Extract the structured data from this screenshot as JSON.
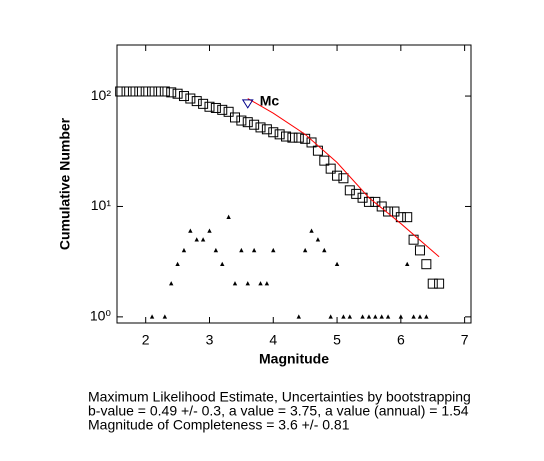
{
  "chart_data": {
    "type": "scatter",
    "xlabel": "Magnitude",
    "ylabel": "Cumulative Number",
    "xlim": [
      1.55,
      7.1
    ],
    "ylim": [
      0.88,
      290
    ],
    "log_y": true,
    "xticks": [
      2,
      3,
      4,
      5,
      6,
      7
    ],
    "yticks": [
      {
        "value": 1,
        "label": "10⁰"
      },
      {
        "value": 10,
        "label": "10¹"
      },
      {
        "value": 100,
        "label": "10²"
      }
    ],
    "series": [
      {
        "marker": "square",
        "color": "#000000",
        "x": [
          1.6,
          1.7,
          1.8,
          1.9,
          2.0,
          2.1,
          2.2,
          2.3,
          2.4,
          2.5,
          2.6,
          2.7,
          2.8,
          2.9,
          3.0,
          3.1,
          3.2,
          3.3,
          3.4,
          3.5,
          3.6,
          3.7,
          3.8,
          3.9,
          4.0,
          4.1,
          4.2,
          4.3,
          4.4,
          4.5,
          4.6,
          4.7,
          4.8,
          4.9,
          5.0,
          5.1,
          5.2,
          5.3,
          5.4,
          5.5,
          5.6,
          5.7,
          5.8,
          5.9,
          6.0,
          6.1,
          6.2,
          6.3,
          6.4,
          6.5,
          6.6
        ],
        "values": [
          110,
          110,
          110,
          110,
          110,
          110,
          110,
          110,
          108,
          105,
          100,
          95,
          90,
          85,
          80,
          78,
          75,
          72,
          64,
          60,
          58,
          55,
          52,
          50,
          47,
          45,
          43,
          42,
          42,
          41,
          38,
          32,
          26,
          22,
          19,
          18,
          14,
          13,
          12,
          11,
          11,
          10,
          9,
          9,
          8,
          8,
          5,
          4,
          3,
          2,
          2
        ]
      },
      {
        "marker": "triangle",
        "color": "#000000",
        "x": [
          2.1,
          2.3,
          2.4,
          2.5,
          2.6,
          2.7,
          2.8,
          2.9,
          3.0,
          3.1,
          3.2,
          3.3,
          3.4,
          3.5,
          3.6,
          3.7,
          3.8,
          3.9,
          4.0,
          4.4,
          4.5,
          4.6,
          4.7,
          4.8,
          4.9,
          5.0,
          5.1,
          5.2,
          5.4,
          5.5,
          5.6,
          5.7,
          5.8,
          6.0,
          6.1,
          6.2,
          6.3,
          6.4
        ],
        "values": [
          1,
          1,
          2,
          3,
          4,
          6,
          5,
          5,
          6,
          4,
          3,
          8,
          2,
          4,
          2,
          4,
          2,
          2,
          4,
          1,
          4,
          6,
          5,
          4,
          1,
          3,
          1,
          1,
          1,
          1,
          1,
          1,
          1,
          1,
          3,
          1,
          1,
          1
        ]
      },
      {
        "marker": "line",
        "color": "#ff0000",
        "x": [
          3.6,
          4.0,
          4.5,
          5.0,
          5.5,
          6.0,
          6.6
        ],
        "values": [
          95,
          70,
          45,
          25,
          12,
          7,
          3.5
        ]
      }
    ],
    "mc": {
      "label": "Mc",
      "x": 3.6,
      "value": 85,
      "color": "#00008b"
    },
    "annotations": [
      "Maximum Likelihood Estimate, Uncertainties by bootstrapping",
      "b-value = 0.49 +/- 0.3,  a value = 3.75,  a value (annual) = 1.54",
      "Magnitude of Completeness = 3.6 +/- 0.81"
    ]
  }
}
